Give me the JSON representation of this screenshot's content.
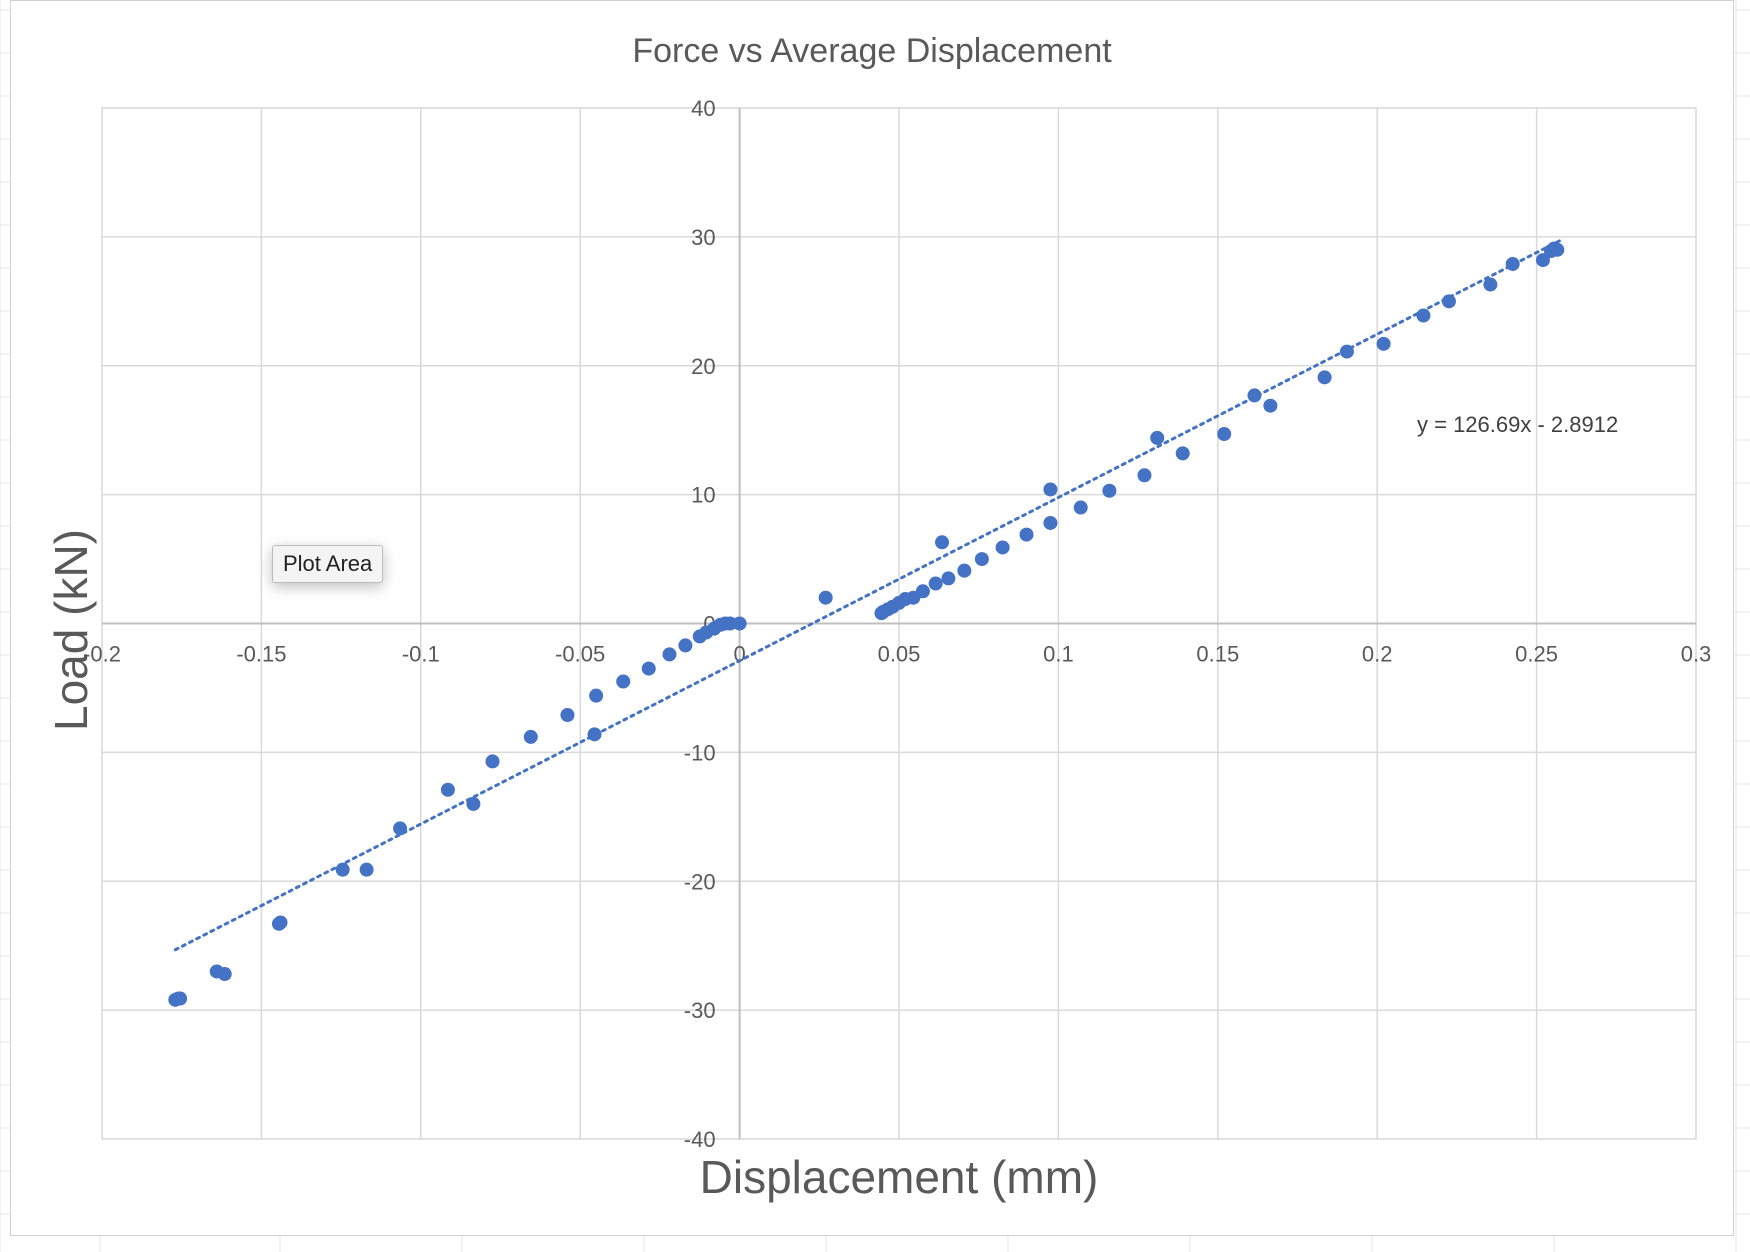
{
  "tooltip": {
    "label": "Plot Area"
  },
  "colors": {
    "marker": "#4472C4",
    "trendline": "#4472C4",
    "grid": "#d9d9d9",
    "axis": "#bfbfbf",
    "text": "#595959"
  },
  "chart_data": {
    "type": "scatter",
    "title": "Force vs Average Displacement",
    "xlabel": "Displacement (mm)",
    "ylabel": "Load (kN)",
    "xlim": [
      -0.2,
      0.3
    ],
    "ylim": [
      -40,
      40
    ],
    "x_ticks": [
      -0.2,
      -0.15,
      -0.1,
      -0.05,
      0,
      0.05,
      0.1,
      0.15,
      0.2,
      0.25,
      0.3
    ],
    "x_tick_labels": [
      "-0.2",
      "-0.15",
      "-0.1",
      "-0.05",
      "0",
      "0.05",
      "0.1",
      "0.15",
      "0.2",
      "0.25",
      "0.3"
    ],
    "y_ticks": [
      -40,
      -30,
      -20,
      -10,
      0,
      10,
      20,
      30,
      40
    ],
    "y_tick_labels": [
      "-40",
      "-30",
      "-20",
      "-10",
      "0",
      "10",
      "20",
      "30",
      "40"
    ],
    "grid": true,
    "series": [
      {
        "x": [
          -0.177,
          -0.176,
          -0.1755,
          -0.164,
          -0.1615,
          -0.1445,
          -0.144,
          -0.1245,
          -0.117,
          -0.1065,
          -0.0915,
          -0.0835,
          -0.0775,
          -0.0655,
          -0.054,
          -0.0455,
          -0.045,
          -0.0365,
          -0.0285,
          -0.022,
          -0.017,
          -0.0125,
          -0.0105,
          -0.008,
          -0.006,
          -0.0045,
          -0.003,
          0.0,
          0.027,
          0.0445,
          0.045,
          0.0465,
          0.048,
          0.05,
          0.052,
          0.0545,
          0.0575,
          0.0615,
          0.0635,
          0.0655,
          0.0705,
          0.076,
          0.0825,
          0.09,
          0.0975,
          0.0975,
          0.107,
          0.116,
          0.127,
          0.131,
          0.139,
          0.152,
          0.1615,
          0.1665,
          0.1835,
          0.1905,
          0.202,
          0.2145,
          0.2225,
          0.2355,
          0.2425,
          0.252,
          0.2545,
          0.2555,
          0.2565
        ],
        "y": [
          -29.2,
          -29.1,
          -29.1,
          -27.0,
          -27.2,
          -23.3,
          -23.2,
          -19.1,
          -19.1,
          -15.9,
          -12.9,
          -14.0,
          -10.7,
          -8.8,
          -7.1,
          -8.6,
          -5.6,
          -4.5,
          -3.5,
          -2.4,
          -1.7,
          -1.0,
          -0.7,
          -0.4,
          -0.1,
          0.0,
          0.0,
          0.0,
          2.0,
          0.8,
          0.9,
          1.1,
          1.3,
          1.6,
          1.9,
          2.0,
          2.5,
          3.1,
          6.3,
          3.5,
          4.1,
          5.0,
          5.9,
          6.9,
          7.8,
          10.4,
          9.0,
          10.3,
          11.5,
          14.4,
          13.2,
          14.7,
          17.7,
          16.9,
          19.1,
          21.1,
          21.7,
          23.9,
          25.0,
          26.3,
          27.9,
          28.2,
          28.9,
          29.1,
          29.0
        ]
      }
    ],
    "trendline": {
      "slope": 126.69,
      "intercept": -2.8912,
      "x_range": [
        -0.177,
        0.2575
      ],
      "label": "y = 126.69x - 2.8912"
    }
  }
}
